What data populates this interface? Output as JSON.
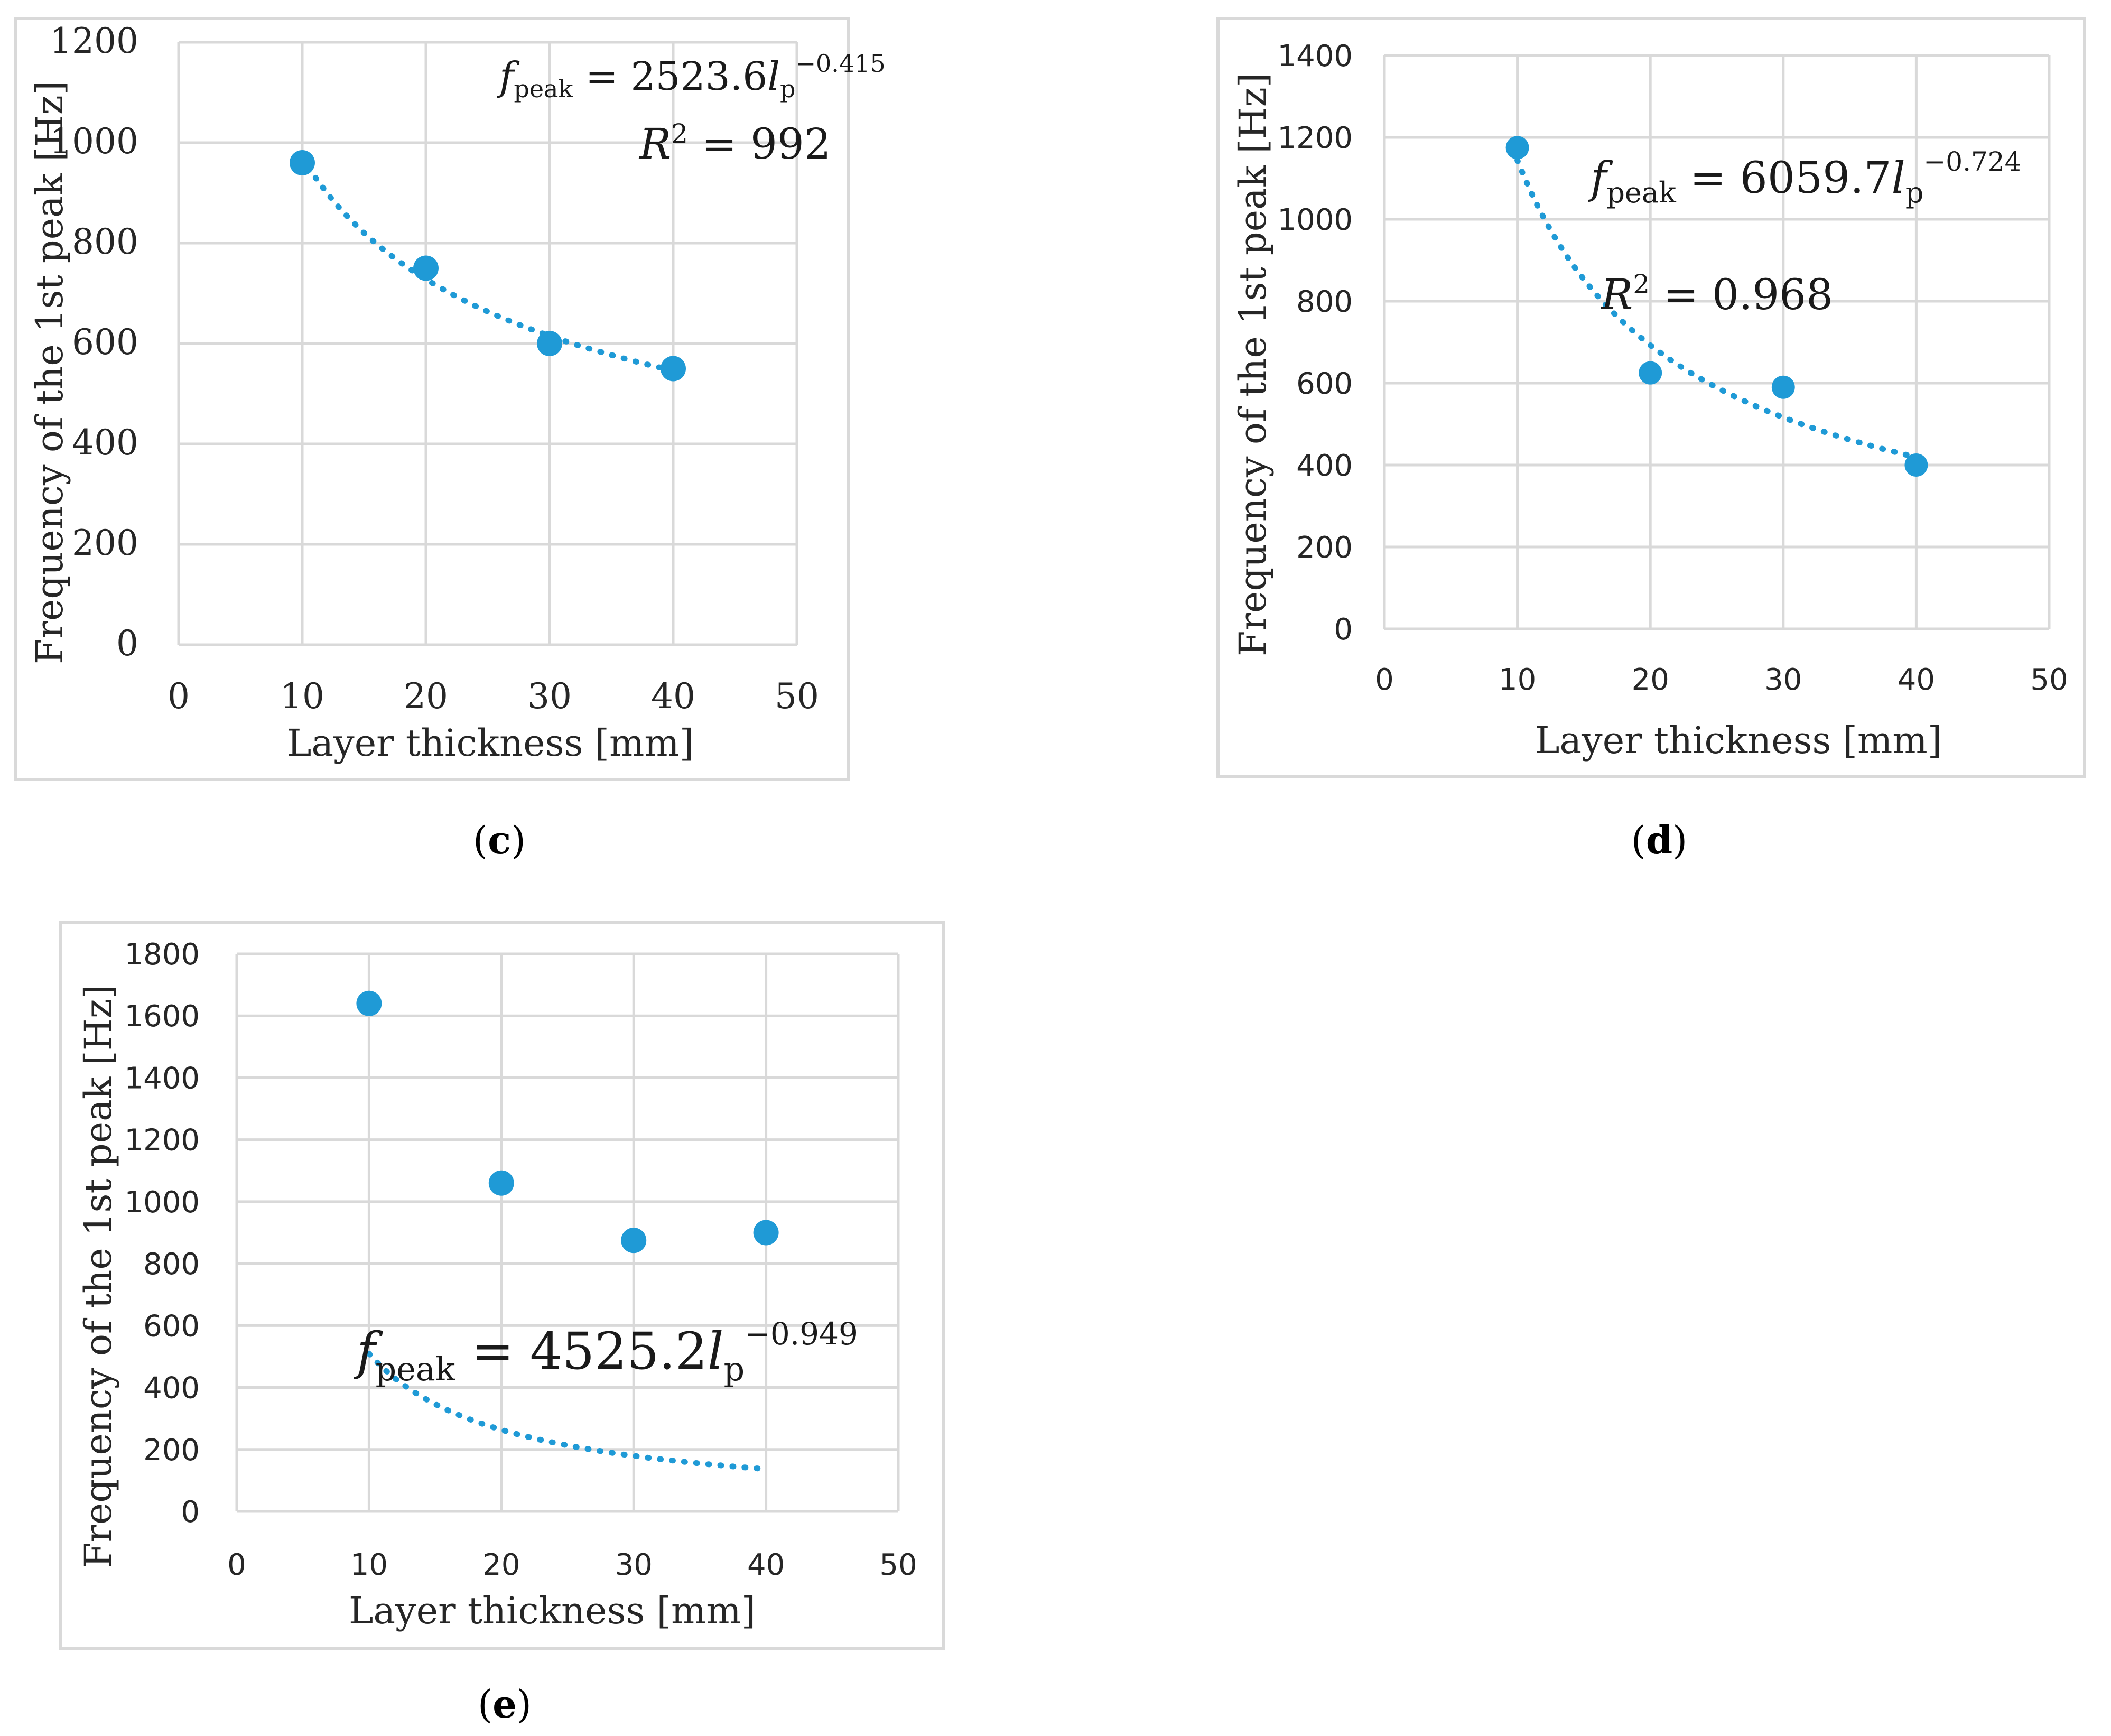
{
  "colors": {
    "marker": "#1f9ad6",
    "grid": "#d9d9d9",
    "frame": "#d9d9d9"
  },
  "chart_data": [
    {
      "panel": "c",
      "type": "scatter",
      "x": [
        10,
        20,
        30,
        40
      ],
      "y": [
        960,
        750,
        600,
        550
      ],
      "xlim": [
        0,
        50
      ],
      "ylim": [
        0,
        1200
      ],
      "xticks": [
        "0",
        "10",
        "20",
        "30",
        "40",
        "50"
      ],
      "yticks": [
        "0",
        "200",
        "400",
        "600",
        "800",
        "1000",
        "1200"
      ],
      "xlabel": "Layer thickness [mm]",
      "ylabel": "Frequency of the 1st peak [Hz]",
      "trendline": {
        "type": "power",
        "coef": 2523.6,
        "exp": -0.415
      },
      "equation": {
        "f": "f",
        "f_sub": "peak",
        "mid": " = 2523.6",
        "l": "l",
        "l_sub": "p",
        "exp": "−0.415"
      },
      "r2": {
        "lhs": "R",
        "sup": "2",
        "rhs": " = 992"
      },
      "caption": {
        "open": "(",
        "letter": "c",
        "close": ")"
      }
    },
    {
      "panel": "d",
      "type": "scatter",
      "x": [
        10,
        20,
        30,
        40
      ],
      "y": [
        1175,
        625,
        590,
        400
      ],
      "xlim": [
        0,
        50
      ],
      "ylim": [
        0,
        1400
      ],
      "xticks": [
        "0",
        "10",
        "20",
        "30",
        "40",
        "50"
      ],
      "yticks": [
        "0",
        "200",
        "400",
        "600",
        "800",
        "1000",
        "1200",
        "1400"
      ],
      "xlabel": "Layer thickness [mm]",
      "ylabel": "Frequency of the 1st peak [Hz]",
      "trendline": {
        "type": "power",
        "coef": 6059.7,
        "exp": -0.724
      },
      "equation": {
        "f": "f",
        "f_sub": "peak",
        "mid": " = 6059.7",
        "l": "l",
        "l_sub": "p",
        "exp": "−0.724"
      },
      "r2": {
        "lhs": "R",
        "sup": "2",
        "rhs": " = 0.968"
      },
      "caption": {
        "open": "(",
        "letter": "d",
        "close": ")"
      }
    },
    {
      "panel": "e",
      "type": "scatter",
      "x": [
        10,
        20,
        30,
        40
      ],
      "y": [
        1640,
        1060,
        875,
        900
      ],
      "xlim": [
        0,
        50
      ],
      "ylim": [
        0,
        1800
      ],
      "xticks": [
        "0",
        "10",
        "20",
        "30",
        "40",
        "50"
      ],
      "yticks": [
        "0",
        "200",
        "400",
        "600",
        "800",
        "1000",
        "1200",
        "1400",
        "1600",
        "1800"
      ],
      "xlabel": "Layer thickness [mm]",
      "ylabel": "Frequency of the 1st peak [Hz]",
      "trendline": {
        "type": "power",
        "coef": 4525.2,
        "exp": -0.949
      },
      "equation": {
        "f": "f",
        "f_sub": "peak",
        "mid": " = 4525.2",
        "l": "l",
        "l_sub": "p",
        "exp": "−0.949"
      },
      "caption": {
        "open": "(",
        "letter": "e",
        "close": ")"
      }
    }
  ]
}
